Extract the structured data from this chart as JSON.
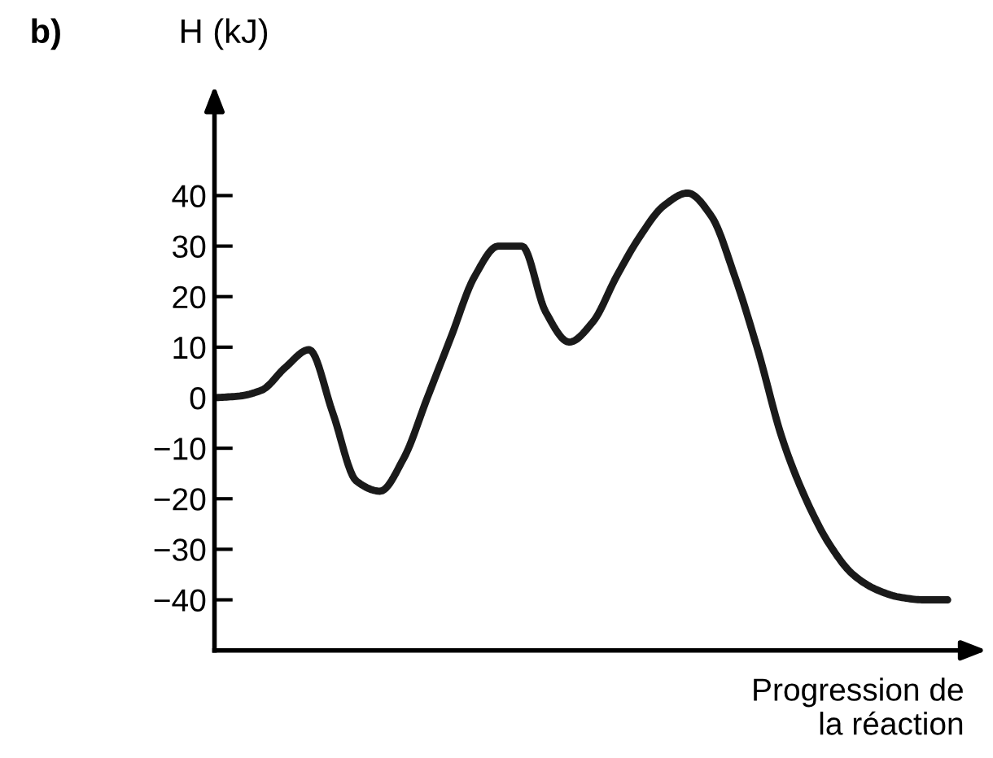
{
  "chart_data": {
    "type": "line",
    "title": "b)",
    "ylabel": "H (kJ)",
    "xlabel": "Progression de\nla réaction",
    "categories": [
      null,
      null,
      null,
      null,
      null,
      null,
      null,
      null,
      null,
      null,
      null,
      null,
      null,
      null,
      null,
      null,
      null,
      null,
      null,
      null,
      null,
      null,
      null,
      null,
      null,
      null,
      null,
      null,
      null,
      null,
      null,
      null
    ],
    "series": [
      {
        "color": "#1a1a1a",
        "values": [
          0,
          0.3,
          1.5,
          6,
          9.5,
          -3,
          -16.5,
          -18.5,
          -12,
          0,
          12,
          24,
          30,
          30,
          17,
          11,
          15,
          24,
          32,
          38,
          40.5,
          36,
          24,
          9,
          -8,
          -20,
          -29,
          -35,
          -38,
          -39.5,
          -40,
          -40
        ]
      }
    ],
    "ylim": [
      -50,
      58
    ],
    "yticks": [
      {
        "value": -40,
        "label": "−40"
      },
      {
        "value": -30,
        "label": "−30"
      },
      {
        "value": -20,
        "label": "−20"
      },
      {
        "value": -10,
        "label": "−10"
      },
      0,
      10,
      20,
      30,
      40
    ],
    "grid": false,
    "legend": false,
    "marker": "none",
    "line_style": "solid"
  }
}
